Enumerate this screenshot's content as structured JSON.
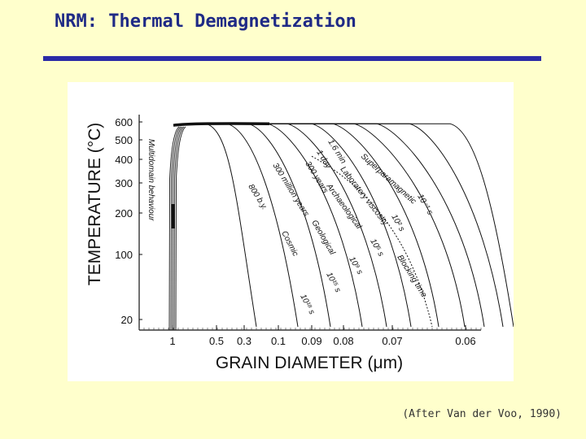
{
  "slide": {
    "title": "NRM: Thermal Demagnetization",
    "citation": "(After Van der Voo, 1990)",
    "accent_color": "#2b2ba6",
    "background_color": "#ffffcc"
  },
  "chart_data": {
    "type": "line",
    "xlabel": "GRAIN DIAMETER (μm)",
    "ylabel": "TEMPERATURE (°C)",
    "x_ticks": [
      "1",
      "0.5",
      "0.3",
      "0.1",
      "0.09",
      "0.08",
      "0.07",
      "0.06"
    ],
    "y_ticks": [
      600,
      500,
      400,
      300,
      200,
      100,
      20
    ],
    "ylim": [
      20,
      600
    ],
    "grid": false,
    "annotations": [
      "Multidomain behaviour",
      "800 b.y.",
      "300 million years",
      "300 years",
      "1 day",
      "1.6 min",
      "Superparamagnetic",
      "Laboratory viscosity",
      "Archaeological",
      "Geological",
      "Cosmic",
      "10⁻¹ s",
      "10² s",
      "10⁵ s",
      "10⁹ s",
      "10¹⁵ s",
      "10¹⁸ s",
      "Blocking time"
    ]
  }
}
